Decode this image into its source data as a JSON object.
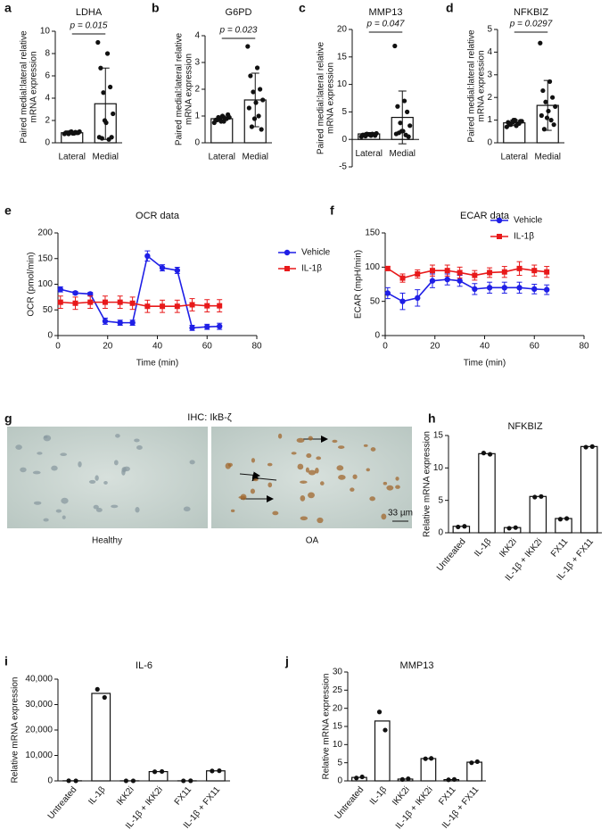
{
  "chart_data": [
    {
      "type": "bar",
      "panel": "a",
      "title": "LDHA",
      "ylabel": [
        "Paired medial:lateral relative",
        "mRNA expression"
      ],
      "categories": [
        "Lateral",
        "Medial"
      ],
      "values": [
        0.9,
        3.5
      ],
      "errors": [
        0.1,
        3.2
      ],
      "points": [
        [
          0.8,
          0.85,
          0.9,
          0.9,
          0.95,
          1.0,
          0.85,
          0.9,
          0.95,
          0.8,
          0.9,
          1.0
        ],
        [
          9.0,
          8.0,
          6.7,
          5.0,
          4.5,
          2.6,
          1.8,
          0.5,
          0.3,
          0.4,
          0.5,
          2.0
        ]
      ],
      "annotation": "p = 0.015",
      "ylim": [
        0,
        10
      ],
      "yticks": [
        0,
        2,
        4,
        6,
        8,
        10
      ],
      "color": "#ffffff",
      "grid": false
    },
    {
      "type": "bar",
      "panel": "b",
      "title": "G6PD",
      "ylabel": [
        "Paired medial:lateral relative",
        "mRNA expression"
      ],
      "categories": [
        "Lateral",
        "Medial"
      ],
      "values": [
        0.9,
        1.6
      ],
      "errors": [
        0.1,
        1.0
      ],
      "points": [
        [
          0.75,
          0.8,
          0.85,
          0.9,
          0.9,
          0.95,
          1.0,
          0.85,
          0.9,
          0.95,
          1.05,
          0.8
        ],
        [
          3.6,
          2.8,
          2.5,
          2.0,
          1.9,
          1.6,
          1.5,
          1.3,
          1.0,
          0.6,
          0.5,
          0.9
        ]
      ],
      "annotation": "p = 0.023",
      "ylim": [
        0,
        4
      ],
      "yticks": [
        0,
        1,
        2,
        3,
        4
      ],
      "color": "#ffffff",
      "grid": false
    },
    {
      "type": "bar",
      "panel": "c",
      "title": "MMP13",
      "ylabel": [
        "Paired medial:lateral relative",
        "mRNA expression"
      ],
      "categories": [
        "Lateral",
        "Medial"
      ],
      "values": [
        1.0,
        4.0
      ],
      "errors": [
        0.25,
        4.8
      ],
      "points": [
        [
          0.5,
          0.7,
          0.8,
          0.9,
          1.0,
          1.1,
          0.9,
          0.8,
          1.0,
          0.6,
          0.7,
          0.9
        ],
        [
          17,
          7,
          6,
          5,
          3,
          2.5,
          1.5,
          1.0,
          0.8,
          1.2,
          0.5,
          1.5
        ]
      ],
      "annotation": "p = 0.047",
      "ylim": [
        -5,
        20
      ],
      "yticks": [
        -5,
        0,
        5,
        10,
        15,
        20
      ],
      "color": "#ffffff",
      "grid": false
    },
    {
      "type": "bar",
      "panel": "d",
      "title": "NFKBIZ",
      "ylabel": [
        "Paired medial:lateral relative",
        "mRNA expression"
      ],
      "categories": [
        "Lateral",
        "Medial"
      ],
      "values": [
        0.88,
        1.65
      ],
      "errors": [
        0.12,
        1.1
      ],
      "points": [
        [
          0.7,
          0.75,
          0.8,
          0.85,
          0.9,
          0.95,
          1.0,
          0.9,
          0.85,
          0.8,
          0.95,
          1.0
        ],
        [
          4.4,
          2.7,
          2.3,
          2.0,
          1.8,
          1.6,
          1.4,
          1.2,
          1.0,
          0.6,
          0.8,
          1.1
        ]
      ],
      "annotation": "p = 0.0297",
      "ylim": [
        0,
        5
      ],
      "yticks": [
        0,
        1,
        2,
        3,
        4,
        5
      ],
      "color": "#ffffff",
      "grid": false
    },
    {
      "type": "line",
      "panel": "e",
      "title": "OCR data",
      "xlabel": "Time (min)",
      "ylabel": "OCR (pmol/min)",
      "x": [
        1,
        7,
        13,
        19,
        25,
        30,
        36,
        42,
        48,
        54,
        60,
        65
      ],
      "series": [
        {
          "name": "Vehicle",
          "color": "#1f1fe6",
          "marker": "circle",
          "values": [
            90,
            83,
            81,
            28,
            25,
            25,
            155,
            132,
            127,
            15,
            17,
            18
          ],
          "errors": [
            5,
            3,
            3,
            6,
            5,
            5,
            10,
            6,
            6,
            5,
            5,
            6
          ]
        },
        {
          "name": "IL-1β",
          "color": "#e8191a",
          "marker": "square",
          "values": [
            65,
            63,
            65,
            65,
            65,
            63,
            57,
            57,
            57,
            60,
            58,
            58
          ],
          "errors": [
            12,
            12,
            12,
            12,
            12,
            12,
            12,
            12,
            12,
            12,
            12,
            12
          ]
        }
      ],
      "xlim": [
        0,
        80
      ],
      "xticks": [
        0,
        20,
        40,
        60,
        80
      ],
      "ylim": [
        0,
        200
      ],
      "yticks": [
        0,
        50,
        100,
        150,
        200
      ],
      "legend": "right",
      "grid": false
    },
    {
      "type": "line",
      "panel": "f",
      "title": "ECAR data",
      "xlabel": "Time (min)",
      "ylabel": "ECAR (mpH/min)",
      "x": [
        1,
        7,
        13,
        19,
        25,
        30,
        36,
        42,
        48,
        54,
        60,
        65
      ],
      "series": [
        {
          "name": "Vehicle",
          "color": "#1f1fe6",
          "marker": "circle",
          "values": [
            62,
            50,
            55,
            80,
            82,
            80,
            68,
            70,
            70,
            70,
            68,
            67
          ],
          "errors": [
            8,
            12,
            12,
            10,
            8,
            8,
            8,
            8,
            8,
            8,
            7,
            7
          ]
        },
        {
          "name": "IL-1β",
          "color": "#e8191a",
          "marker": "square",
          "values": [
            98,
            84,
            90,
            95,
            95,
            92,
            88,
            92,
            93,
            98,
            95,
            93
          ],
          "errors": [
            3,
            6,
            6,
            8,
            8,
            8,
            7,
            7,
            8,
            10,
            8,
            8
          ]
        }
      ],
      "xlim": [
        0,
        80
      ],
      "xticks": [
        0,
        20,
        40,
        60,
        80
      ],
      "ylim": [
        0,
        150
      ],
      "yticks": [
        0,
        50,
        100,
        150
      ],
      "legend": "upper right",
      "grid": false
    },
    {
      "type": "bar",
      "panel": "h",
      "title": "NFKBIZ",
      "ylabel": "Relative mRNA expression",
      "categories": [
        "Untreated",
        "IL-1β",
        "IKK2i",
        "IL-1β + IKK2i",
        "FX11",
        "IL-1β + FX11"
      ],
      "values": [
        1.0,
        12.2,
        0.8,
        5.6,
        2.2,
        13.3
      ],
      "points": [
        [
          0.9,
          1.0
        ],
        [
          12.3,
          12.1
        ],
        [
          0.7,
          0.8
        ],
        [
          5.5,
          5.6
        ],
        [
          2.1,
          2.2
        ],
        [
          13.2,
          13.3
        ]
      ],
      "ylim": [
        0,
        15
      ],
      "yticks": [
        0,
        5,
        10,
        15
      ],
      "color": "#ffffff",
      "grid": false
    },
    {
      "type": "bar",
      "panel": "i",
      "title": "IL-6",
      "ylabel": "Relative mRNA expression",
      "categories": [
        "Untreated",
        "IL-1β",
        "IKK2i",
        "IL-1β + IKK2i",
        "FX11",
        "IL-1β + FX11"
      ],
      "values": [
        45,
        34400,
        25,
        3650,
        30,
        3950
      ],
      "points": [
        [
          60,
          30
        ],
        [
          36000,
          32800
        ],
        [
          30,
          20
        ],
        [
          3600,
          3700
        ],
        [
          20,
          40
        ],
        [
          3900,
          4000
        ]
      ],
      "ylim": [
        0,
        40000
      ],
      "yticks": [
        0,
        {
          "value": 10000,
          "label": "10,000"
        },
        {
          "value": 20000,
          "label": "20,000"
        },
        {
          "value": 30000,
          "label": "30,000"
        },
        {
          "value": 40000,
          "label": "40,000"
        }
      ],
      "color": "#ffffff",
      "grid": false
    },
    {
      "type": "bar",
      "panel": "j",
      "title": "MMP13",
      "ylabel": "Relative mRNA expression",
      "categories": [
        "Untreated",
        "IL-1β",
        "IKK2i",
        "IL-1β + IKK2i",
        "FX11",
        "IL-1β + FX11"
      ],
      "values": [
        0.95,
        16.5,
        0.5,
        6.15,
        0.35,
        5.15
      ],
      "points": [
        [
          0.8,
          1.1
        ],
        [
          19,
          14
        ],
        [
          0.4,
          0.6
        ],
        [
          6.1,
          6.2
        ],
        [
          0.3,
          0.4
        ],
        [
          5.0,
          5.3
        ]
      ],
      "ylim": [
        0,
        30
      ],
      "yticks": [
        0,
        5,
        10,
        15,
        20,
        25,
        30
      ],
      "color": "#ffffff",
      "grid": false
    }
  ],
  "figure_g": {
    "panel": "g",
    "title": "IHC: IkB-ζ",
    "images": [
      {
        "label": "Healthy"
      },
      {
        "label": "OA"
      }
    ],
    "scale_bar": "33 µm"
  }
}
